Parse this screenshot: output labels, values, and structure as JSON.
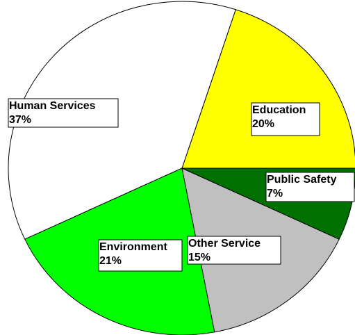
{
  "chart_data": {
    "type": "pie",
    "categories": [
      "Education",
      "Human Services",
      "Environment",
      "Other Service",
      "Public Safety"
    ],
    "values": [
      20,
      37,
      21,
      15,
      7
    ],
    "value_labels": [
      "20%",
      "37%",
      "21%",
      "15%",
      "7%"
    ],
    "colors": [
      "#ffff00",
      "#ffffff",
      "#00ff00",
      "#c0c0c0",
      "#007000"
    ]
  }
}
